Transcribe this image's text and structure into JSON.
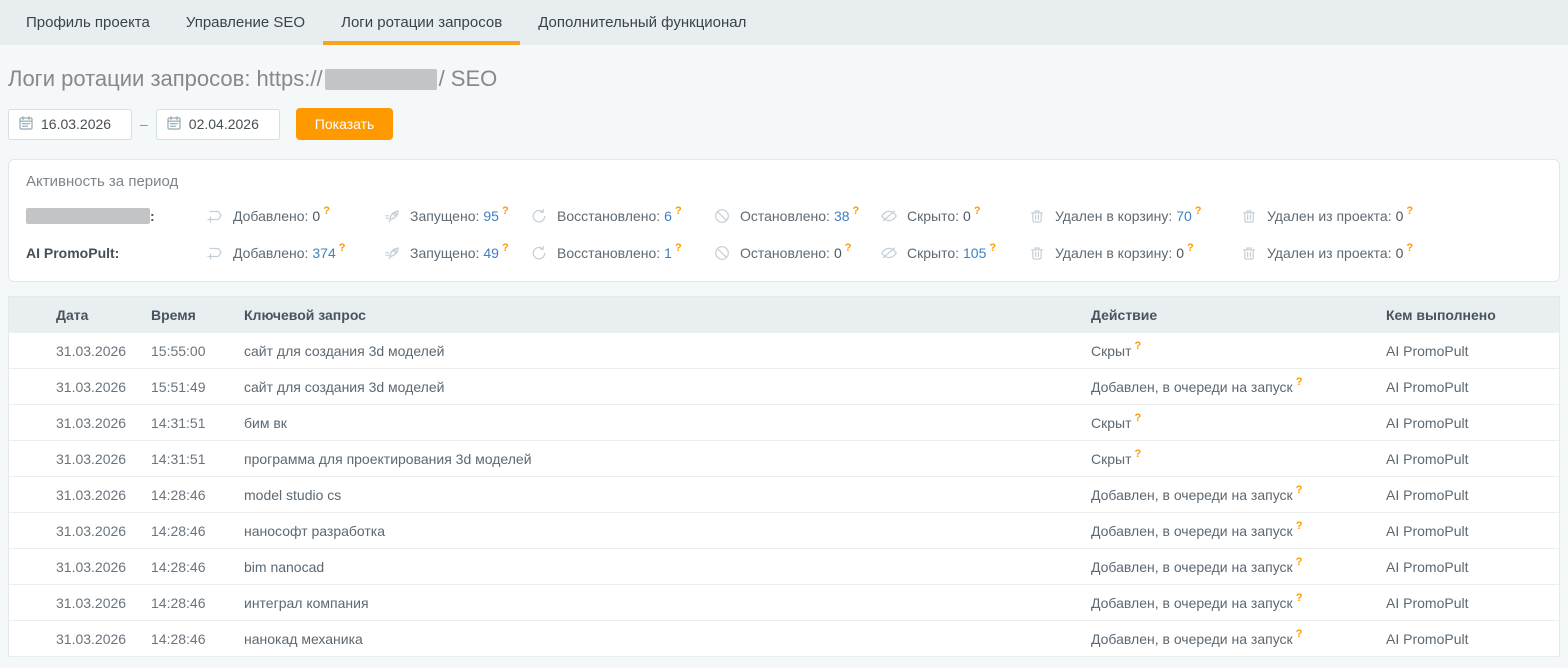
{
  "tabs": [
    {
      "label": "Профиль проекта",
      "active": false
    },
    {
      "label": "Управление SEO",
      "active": false
    },
    {
      "label": "Логи ротации запросов",
      "active": true
    },
    {
      "label": "Дополнительный функционал",
      "active": false
    }
  ],
  "page": {
    "title_prefix": "Логи ротации запросов: https://",
    "title_suffix": "/ SEO"
  },
  "filter": {
    "date_from": "16.03.2026",
    "date_to": "02.04.2026",
    "range_separator": "–",
    "show_button": "Показать"
  },
  "ui": {
    "help_mark": "?"
  },
  "colors": {
    "accent_orange": "#ff9900",
    "active_tab_underline": "#f8a21d",
    "link_blue": "#4080c6",
    "tabbar_bg": "#e8eef0",
    "page_bg": "#f4f8f9"
  },
  "activity": {
    "title": "Активность за период",
    "rows": [
      {
        "actor": "",
        "actor_redacted": true,
        "actor_colon": ":",
        "stats": [
          {
            "icon": "add-icon",
            "label": "Добавлено:",
            "value": "0"
          },
          {
            "icon": "rocket-icon",
            "label": "Запущено:",
            "value": "95"
          },
          {
            "icon": "restore-icon",
            "label": "Восстановлено:",
            "value": "6"
          },
          {
            "icon": "stop-icon",
            "label": "Остановлено:",
            "value": "38"
          },
          {
            "icon": "eye-off-icon",
            "label": "Скрыто:",
            "value": "0"
          },
          {
            "icon": "trash-icon",
            "label": "Удален в корзину:",
            "value": "70"
          },
          {
            "icon": "trash-icon",
            "label": "Удален из проекта:",
            "value": "0"
          }
        ]
      },
      {
        "actor": "AI PromoPult:",
        "actor_redacted": false,
        "actor_colon": "",
        "stats": [
          {
            "icon": "add-icon",
            "label": "Добавлено:",
            "value": "374"
          },
          {
            "icon": "rocket-icon",
            "label": "Запущено:",
            "value": "49"
          },
          {
            "icon": "restore-icon",
            "label": "Восстановлено:",
            "value": "1"
          },
          {
            "icon": "stop-icon",
            "label": "Остановлено:",
            "value": "0"
          },
          {
            "icon": "eye-off-icon",
            "label": "Скрыто:",
            "value": "105"
          },
          {
            "icon": "trash-icon",
            "label": "Удален в корзину:",
            "value": "0"
          },
          {
            "icon": "trash-icon",
            "label": "Удален из проекта:",
            "value": "0"
          }
        ]
      }
    ]
  },
  "table": {
    "headers": [
      "Дата",
      "Время",
      "Ключевой запрос",
      "Действие",
      "Кем выполнено"
    ],
    "rows": [
      {
        "date": "31.03.2026",
        "time": "15:55:00",
        "query": "сайт для создания 3d моделей",
        "action": "Скрыт",
        "by": "AI PromoPult"
      },
      {
        "date": "31.03.2026",
        "time": "15:51:49",
        "query": "сайт для создания 3d моделей",
        "action": "Добавлен, в очереди на запуск",
        "by": "AI PromoPult"
      },
      {
        "date": "31.03.2026",
        "time": "14:31:51",
        "query": "бим вк",
        "action": "Скрыт",
        "by": "AI PromoPult"
      },
      {
        "date": "31.03.2026",
        "time": "14:31:51",
        "query": "программа для проектирования 3d моделей",
        "action": "Скрыт",
        "by": "AI PromoPult"
      },
      {
        "date": "31.03.2026",
        "time": "14:28:46",
        "query": "model studio cs",
        "action": "Добавлен, в очереди на запуск",
        "by": "AI PromoPult"
      },
      {
        "date": "31.03.2026",
        "time": "14:28:46",
        "query": "нанософт разработка",
        "action": "Добавлен, в очереди на запуск",
        "by": "AI PromoPult"
      },
      {
        "date": "31.03.2026",
        "time": "14:28:46",
        "query": "bim nanocad",
        "action": "Добавлен, в очереди на запуск",
        "by": "AI PromoPult"
      },
      {
        "date": "31.03.2026",
        "time": "14:28:46",
        "query": "интеграл компания",
        "action": "Добавлен, в очереди на запуск",
        "by": "AI PromoPult"
      },
      {
        "date": "31.03.2026",
        "time": "14:28:46",
        "query": "нанокад механика",
        "action": "Добавлен, в очереди на запуск",
        "by": "AI PromoPult"
      }
    ]
  }
}
